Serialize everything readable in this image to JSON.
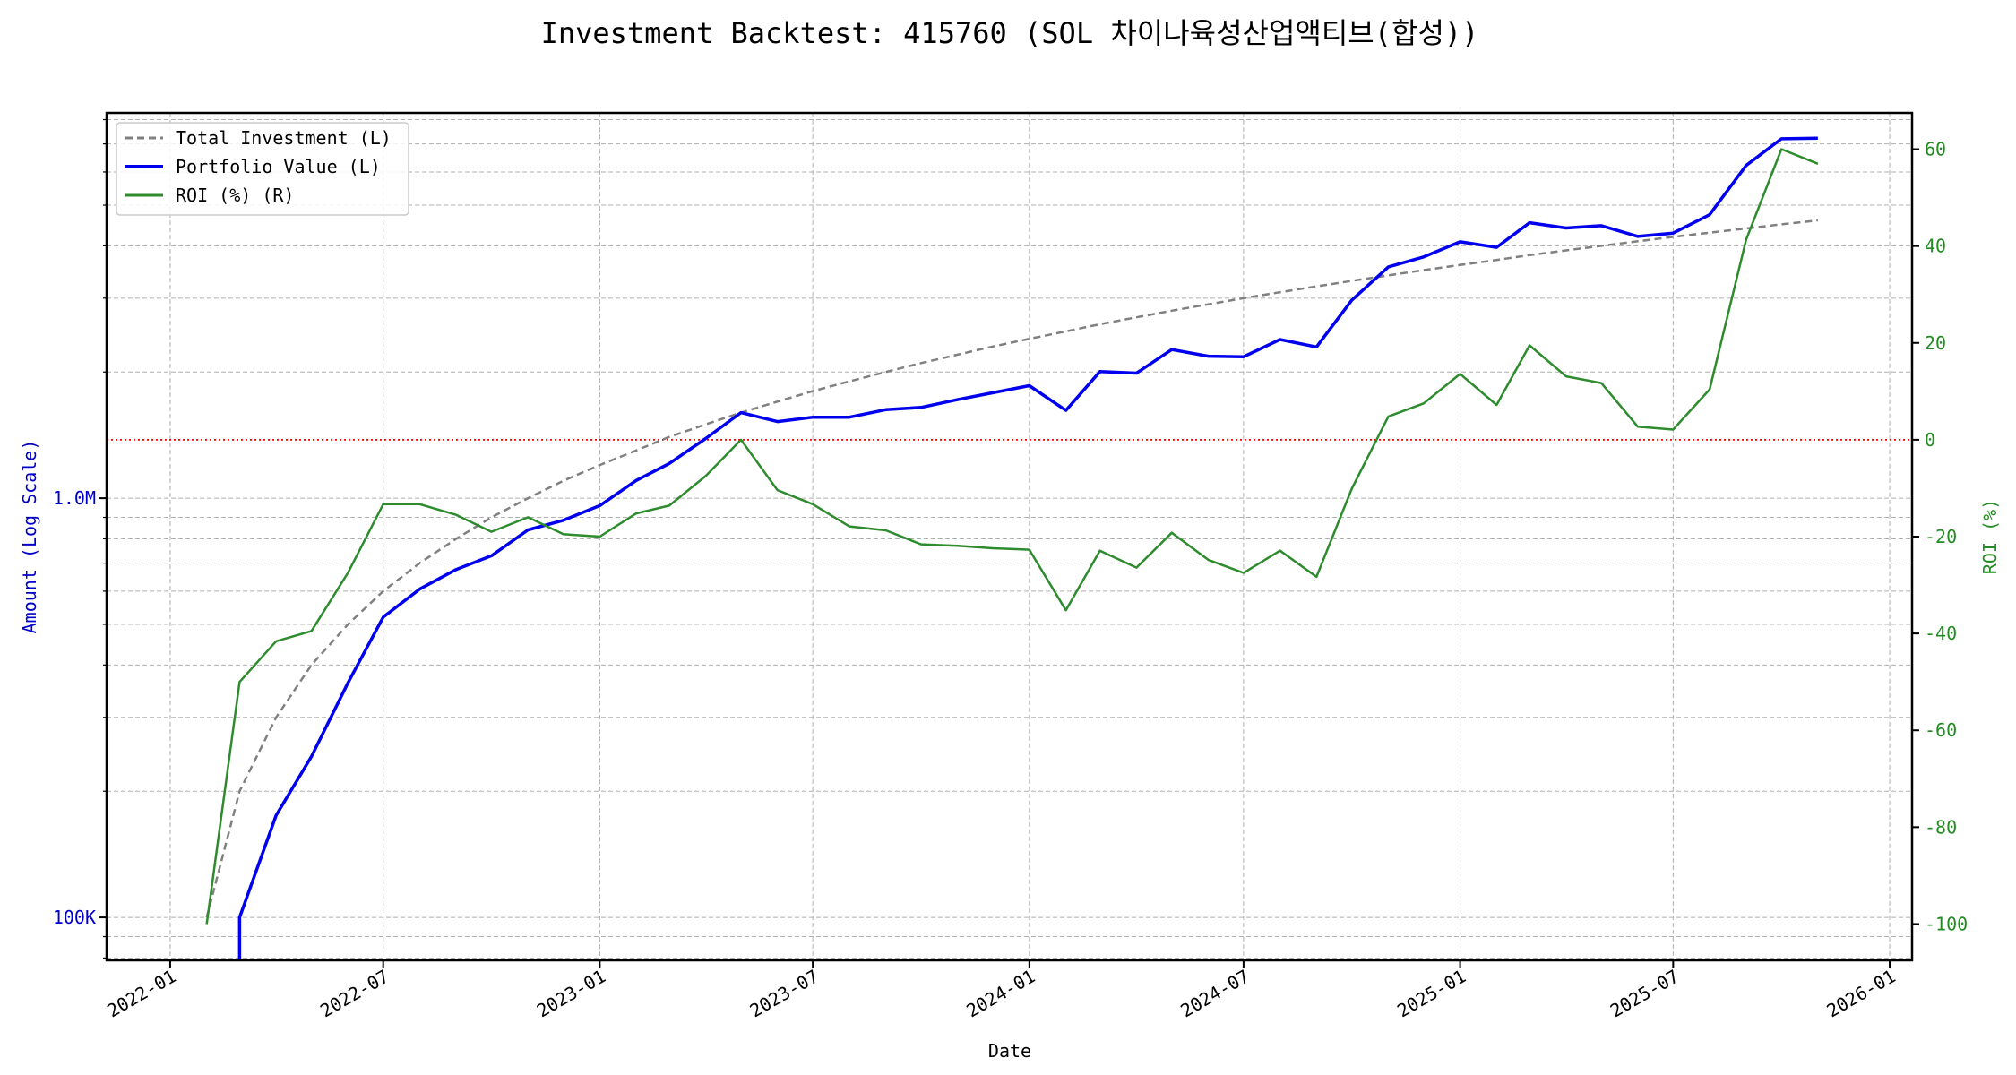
{
  "chart_data": {
    "type": "line",
    "title": "Investment Backtest: 415760 (SOL 차이나육성산업액티브(합성))",
    "xlabel": "Date",
    "ylabel_left": "Amount (Log Scale)",
    "ylabel_right": "ROI (%)",
    "x_ticks": [
      "2022-01",
      "2022-07",
      "2023-01",
      "2023-07",
      "2024-01",
      "2024-07",
      "2025-01",
      "2025-07",
      "2026-01"
    ],
    "y_left_ticks": [
      {
        "value": 100000,
        "label": "100K"
      },
      {
        "value": 1000000,
        "label": "1.0M"
      }
    ],
    "y_left_scale": "log",
    "y_left_range": [
      79000,
      8300000
    ],
    "y_right_ticks": [
      -100,
      -80,
      -60,
      -40,
      -20,
      0,
      20,
      40,
      60
    ],
    "y_right_range": [
      -107.5,
      67.5
    ],
    "x_range": [
      "2021-11-08",
      "2026-01-20"
    ],
    "grid": true,
    "legend_placement": "top-left",
    "reference_line": {
      "axis": "right",
      "value": 0,
      "color": "#ff0000",
      "style": "dotted"
    },
    "dates": [
      "2022-02",
      "2022-03",
      "2022-04",
      "2022-05",
      "2022-06",
      "2022-07",
      "2022-08",
      "2022-09",
      "2022-10",
      "2022-11",
      "2022-12",
      "2023-01",
      "2023-02",
      "2023-03",
      "2023-04",
      "2023-05",
      "2023-06",
      "2023-07",
      "2023-08",
      "2023-09",
      "2023-10",
      "2023-11",
      "2023-12",
      "2024-01",
      "2024-02",
      "2024-03",
      "2024-04",
      "2024-05",
      "2024-06",
      "2024-07",
      "2024-08",
      "2024-09",
      "2024-10",
      "2024-11",
      "2024-12",
      "2025-01",
      "2025-02",
      "2025-03",
      "2025-04",
      "2025-05",
      "2025-06",
      "2025-07",
      "2025-08",
      "2025-09",
      "2025-10",
      "2025-11"
    ],
    "series": [
      {
        "name": "Total Investment (L)",
        "axis": "left",
        "color": "#808080",
        "style": "dashed",
        "values": [
          100000,
          200000,
          300000,
          400000,
          500000,
          600000,
          700000,
          800000,
          900000,
          1000000,
          1100000,
          1200000,
          1300000,
          1400000,
          1500000,
          1600000,
          1700000,
          1800000,
          1900000,
          2000000,
          2100000,
          2200000,
          2300000,
          2400000,
          2500000,
          2600000,
          2700000,
          2800000,
          2900000,
          3000000,
          3100000,
          3200000,
          3300000,
          3400000,
          3500000,
          3600000,
          3700000,
          3800000,
          3900000,
          4000000,
          4100000,
          4200000,
          4300000,
          4400000,
          4500000,
          4600000
        ]
      },
      {
        "name": "Portfolio Value (L)",
        "axis": "left",
        "color": "#0000ee",
        "style": "solid",
        "values": [
          0,
          100000,
          175200,
          242000,
          362500,
          520200,
          606900,
          676000,
          729000,
          840000,
          885500,
          960000,
          1102400,
          1209600,
          1387500,
          1600000,
          1523200,
          1560600,
          1559900,
          1626000,
          1646400,
          1718200,
          1784800,
          1855200,
          1620000,
          2004600,
          1987200,
          2262400,
          2180800,
          2175000,
          2390100,
          2294400,
          2966700,
          3563200,
          3762500,
          4089600,
          3966400,
          4541000,
          4410900,
          4468000,
          4210700,
          4288200,
          4747200,
          6217200,
          7200000,
          7222000
        ]
      },
      {
        "name": "ROI (%) (R)",
        "axis": "right",
        "color": "#2e8b2e",
        "style": "solid",
        "values": [
          -100,
          -50,
          -41.6,
          -39.5,
          -27.5,
          -13.3,
          -13.3,
          -15.5,
          -19,
          -16,
          -19.5,
          -20,
          -15.2,
          -13.6,
          -7.5,
          0,
          -10.4,
          -13.3,
          -17.9,
          -18.7,
          -21.6,
          -21.9,
          -22.4,
          -22.7,
          -35.2,
          -22.9,
          -26.4,
          -19.2,
          -24.8,
          -27.5,
          -22.9,
          -28.3,
          -10.1,
          4.8,
          7.5,
          13.6,
          7.2,
          19.5,
          13.1,
          11.7,
          2.7,
          2.1,
          10.4,
          41.3,
          60,
          57
        ]
      }
    ]
  }
}
